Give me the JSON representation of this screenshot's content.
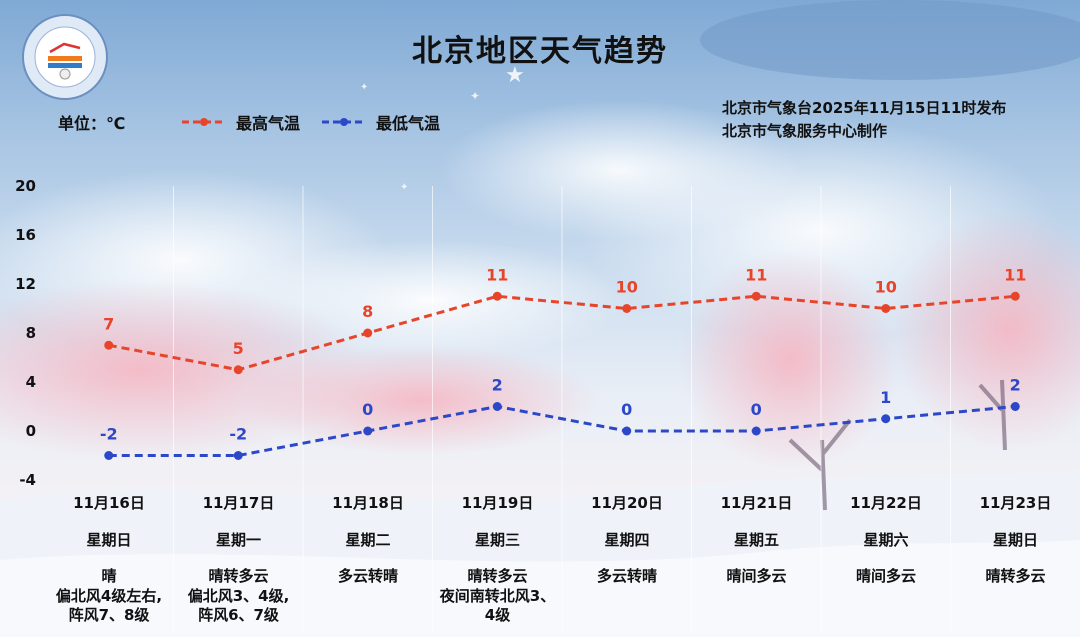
{
  "title": "北京地区天气趋势",
  "unit_label": "单位：℃",
  "publish_line1": "北京市气象台2025年11月15日11时发布",
  "publish_line2": "北京市气象服务中心制作",
  "logo": {
    "icon": "beijing-meteorological-service-logo"
  },
  "colors": {
    "high": "#e8442a",
    "low": "#2c48c8",
    "text": "#111111"
  },
  "chart_data": {
    "type": "line",
    "x": [
      "11月16日",
      "11月17日",
      "11月18日",
      "11月19日",
      "11月20日",
      "11月21日",
      "11月22日",
      "11月23日"
    ],
    "ylim": [
      -4,
      20
    ],
    "yticks": [
      "20",
      "16",
      "12",
      "8",
      "4",
      "0",
      "-4"
    ],
    "grid": "vertical",
    "legend": "top-left",
    "series": [
      {
        "name": "最高气温",
        "values": [
          7,
          5,
          8,
          11,
          10,
          11,
          10,
          11
        ],
        "labels": [
          "7",
          "5",
          "8",
          "11",
          "10",
          "11",
          "10",
          "11"
        ]
      },
      {
        "name": "最低气温",
        "values": [
          -2,
          -2,
          0,
          2,
          0,
          0,
          1,
          2
        ],
        "labels": [
          "-2",
          "-2",
          "0",
          "2",
          "0",
          "0",
          "1",
          "2"
        ]
      }
    ]
  },
  "days": [
    {
      "weekday": "星期日",
      "weather": "晴",
      "wind": [
        "偏北风4级左右,",
        "阵风7、8级"
      ]
    },
    {
      "weekday": "星期一",
      "weather": "晴转多云",
      "wind": [
        "偏北风3、4级,",
        "阵风6、7级"
      ]
    },
    {
      "weekday": "星期二",
      "weather": "多云转晴",
      "wind": []
    },
    {
      "weekday": "星期三",
      "weather": "晴转多云",
      "wind": [
        "夜间南转北风3、",
        "4级"
      ]
    },
    {
      "weekday": "星期四",
      "weather": "多云转晴",
      "wind": []
    },
    {
      "weekday": "星期五",
      "weather": "晴间多云",
      "wind": []
    },
    {
      "weekday": "星期六",
      "weather": "晴间多云",
      "wind": []
    },
    {
      "weekday": "星期日",
      "weather": "晴转多云",
      "wind": []
    }
  ]
}
